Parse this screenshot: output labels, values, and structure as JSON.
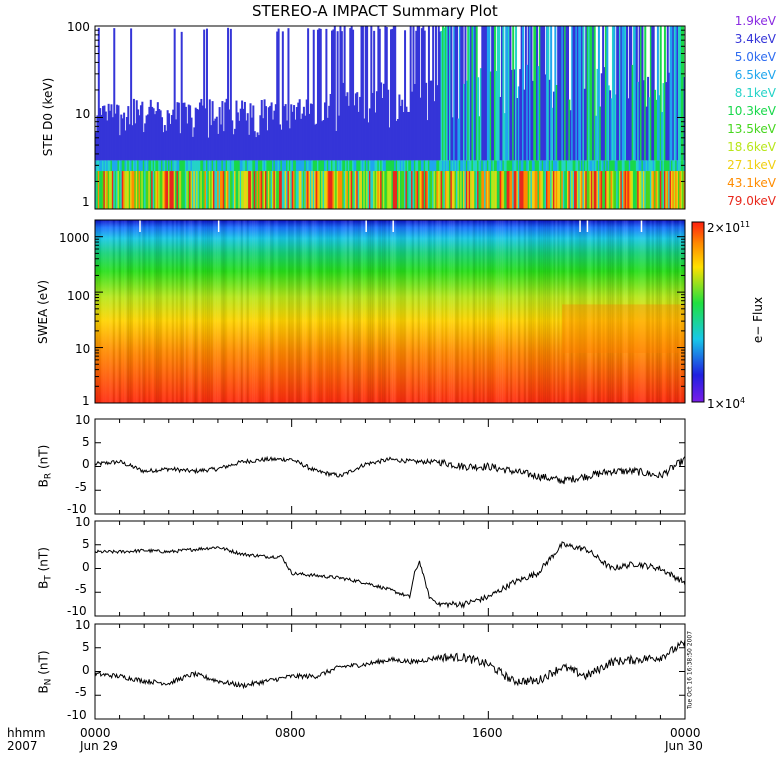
{
  "title": "STEREO-A IMPACT Summary Plot",
  "colors": {
    "energy": [
      "#8a2be2",
      "#3535d8",
      "#2e6cf0",
      "#1fa6ee",
      "#25d3c8",
      "#18d84a",
      "#46d61e",
      "#b8e61a",
      "#f0d012",
      "#ff8c00",
      "#e8281c"
    ]
  },
  "time_axis": {
    "label_line1": "hhmm",
    "label_line2": "2007",
    "ticks": [
      {
        "top": "0000",
        "bottom": "Jun 29"
      },
      {
        "top": "0800",
        "bottom": ""
      },
      {
        "top": "1600",
        "bottom": ""
      },
      {
        "top": "0000",
        "bottom": "Jun 30"
      }
    ]
  },
  "panels": {
    "ste": {
      "ylabel": "STE D0 (keV)",
      "yticks": [
        "100",
        "10",
        "1"
      ]
    },
    "swea": {
      "ylabel": "SWEA (eV)",
      "yticks": [
        "1000",
        "100",
        "10",
        "1"
      ]
    },
    "br": {
      "ylabel_main": "B",
      "ylabel_sub": "R",
      "ylabel_unit": " (nT)",
      "yticks": [
        "10",
        "5",
        "0",
        "-5",
        "-10"
      ]
    },
    "bt": {
      "ylabel_main": "B",
      "ylabel_sub": "T",
      "ylabel_unit": " (nT)",
      "yticks": [
        "10",
        "5",
        "0",
        "-5",
        "-10"
      ]
    },
    "bn": {
      "ylabel_main": "B",
      "ylabel_sub": "N",
      "ylabel_unit": " (nT)",
      "yticks": [
        "10",
        "5",
        "0",
        "-5",
        "-10"
      ]
    }
  },
  "colorbar": {
    "label": "e− Flux",
    "top_mantissa": "2×10",
    "top_exp": "11",
    "bottom_mantissa": "1×10",
    "bottom_exp": "4"
  },
  "energy_legend": [
    "1.9keV",
    "3.4keV",
    "5.0keV",
    "6.5keV",
    "8.1keV",
    "10.3keV",
    "13.5keV",
    "18.6keV",
    "27.1keV",
    "43.1keV",
    "79.0keV"
  ],
  "timestamp": "Tue Oct 16 16:38:50 2007",
  "chart_data": [
    {
      "type": "line",
      "title": "STEREO-A IMPACT Summary Plot",
      "ylabel": "STE D0 (keV)",
      "yscale": "log",
      "ylim": [
        1,
        100
      ],
      "xlim_hours": [
        0,
        24
      ],
      "series_names": [
        "1.9keV",
        "3.4keV",
        "5.0keV",
        "6.5keV",
        "8.1keV",
        "10.3keV",
        "13.5keV",
        "18.6keV",
        "27.1keV",
        "43.1keV",
        "79.0keV"
      ]
    },
    {
      "type": "heatmap",
      "ylabel": "SWEA (eV)",
      "yscale": "log",
      "ylim": [
        1,
        2000
      ],
      "xlim_hours": [
        0,
        24
      ],
      "colorbar_label": "e− Flux",
      "colorbar_range": [
        10000,
        200000000000
      ]
    },
    {
      "type": "line",
      "ylabel": "BR (nT)",
      "ylim": [
        -10,
        10
      ],
      "x_hours": [
        0,
        1,
        2,
        3,
        4,
        5,
        6,
        7,
        8,
        9,
        10,
        11,
        12,
        13,
        14,
        15,
        16,
        17,
        18,
        19,
        20,
        21,
        22,
        23,
        24
      ],
      "values": [
        0.5,
        1,
        -1,
        -0.5,
        -1,
        -0.5,
        1,
        1.5,
        1.5,
        -1,
        -2,
        0.5,
        1.5,
        1,
        1,
        0,
        0,
        -1,
        -2,
        -3,
        -2,
        -1,
        -1,
        -2,
        1.5
      ]
    },
    {
      "type": "line",
      "ylabel": "BT (nT)",
      "ylim": [
        -10,
        10
      ],
      "x_hours": [
        0,
        1,
        2,
        3,
        4,
        5,
        6,
        7,
        7.6,
        8,
        9,
        10,
        11,
        12,
        12.8,
        13,
        13.2,
        13.6,
        14,
        15,
        16,
        17,
        18,
        19,
        20,
        21,
        22,
        23,
        24
      ],
      "values": [
        3.5,
        3.5,
        3.8,
        3.5,
        4,
        4.5,
        3,
        2.5,
        2.5,
        -1,
        -1.5,
        -2,
        -3,
        -4.5,
        -6,
        -1,
        1.5,
        -6,
        -7.5,
        -7.5,
        -6,
        -3,
        -1,
        5,
        4,
        0,
        1,
        0,
        -3
      ]
    },
    {
      "type": "line",
      "ylabel": "BN (nT)",
      "ylim": [
        -10,
        10
      ],
      "x_hours": [
        0,
        1,
        2,
        3,
        4,
        5,
        6,
        7,
        8,
        9,
        10,
        11,
        12,
        13,
        14,
        15,
        16,
        17,
        18,
        19,
        20,
        21,
        22,
        23,
        24
      ],
      "values": [
        -0.5,
        -1,
        -2,
        -2.5,
        -0.5,
        -2,
        -3,
        -2,
        -1,
        -1,
        1,
        1.5,
        2.5,
        2,
        3,
        3,
        1.5,
        -2,
        -2,
        1,
        -1,
        2,
        2.5,
        3,
        6
      ]
    }
  ]
}
